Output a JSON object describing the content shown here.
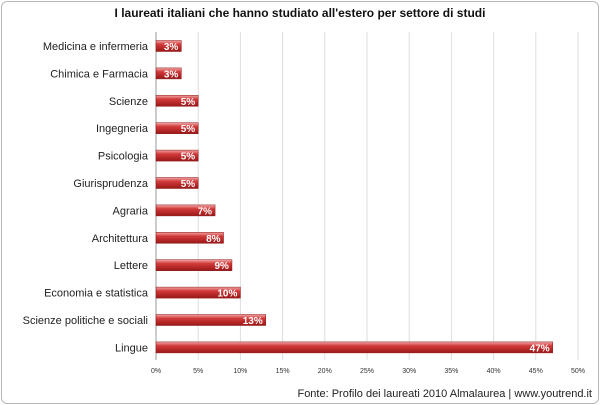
{
  "chart_data": {
    "type": "bar",
    "orientation": "horizontal",
    "title": "I laureati italiani  che hanno studiato all'estero per settore di studi",
    "categories": [
      "Medicina e infermeria",
      "Chimica e Farmacia",
      "Scienze",
      "Ingegneria",
      "Psicologia",
      "Giurisprudenza",
      "Agraria",
      "Architettura",
      "Lettere",
      "Economia e statistica",
      "Scienze politiche e sociali",
      "Lingue"
    ],
    "values": [
      3,
      3,
      5,
      5,
      5,
      5,
      7,
      8,
      9,
      10,
      13,
      47
    ],
    "data_labels": [
      "3%",
      "3%",
      "5%",
      "5%",
      "5%",
      "5%",
      "7%",
      "8%",
      "9%",
      "10%",
      "13%",
      "47%"
    ],
    "xlim": [
      0,
      50
    ],
    "xticks": [
      0,
      5,
      10,
      15,
      20,
      25,
      30,
      35,
      40,
      45,
      50
    ],
    "xtick_labels": [
      "0%",
      "5%",
      "10%",
      "15%",
      "20%",
      "25%",
      "30%",
      "35%",
      "40%",
      "45%",
      "50%"
    ],
    "grid": true,
    "legend": "none",
    "bar_color": "#c62828",
    "source": "Fonte: Profilo dei laureati 2010 Almalaurea | www.youtrend.it"
  }
}
